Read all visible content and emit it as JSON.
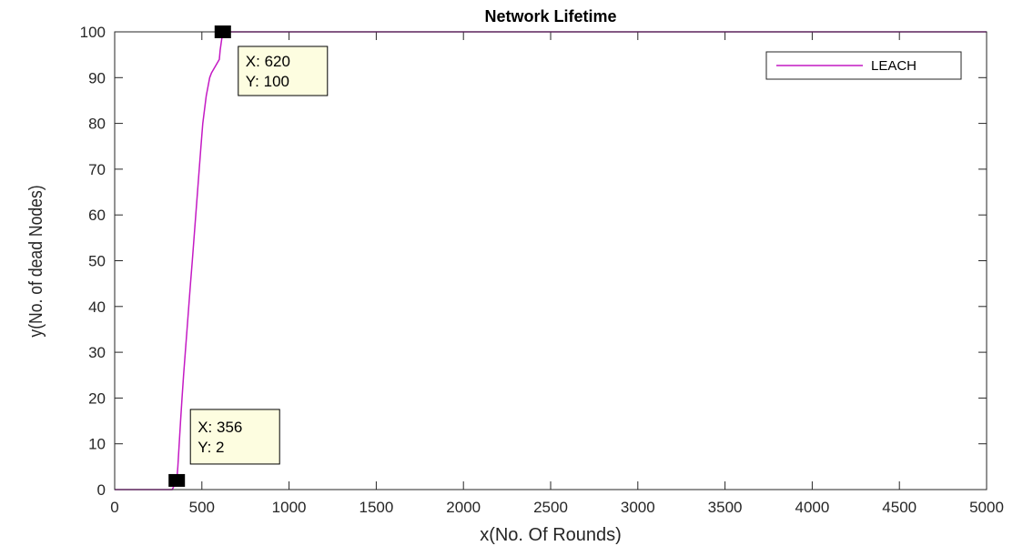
{
  "chart_data": {
    "type": "line",
    "title": "Network Lifetime",
    "xlabel": "x(No. Of Rounds)",
    "ylabel": "y(No. of dead Nodes)",
    "xlim": [
      0,
      5000
    ],
    "ylim": [
      0,
      100
    ],
    "xticks": [
      0,
      500,
      1000,
      1500,
      2000,
      2500,
      3000,
      3500,
      4000,
      4500,
      5000
    ],
    "yticks": [
      0,
      10,
      20,
      30,
      40,
      50,
      60,
      70,
      80,
      90,
      100
    ],
    "grid": false,
    "legend_position": "top-right",
    "colors": {
      "line": "#c41ac4",
      "axes": "#262626",
      "background": "#ffffff",
      "datatip_bg": "#fdfde0"
    },
    "series": [
      {
        "name": "LEACH",
        "x": [
          0,
          330,
          356,
          362,
          370,
          378,
          386,
          395,
          405,
          415,
          425,
          435,
          445,
          455,
          465,
          475,
          485,
          495,
          505,
          515,
          525,
          535,
          545,
          555,
          570,
          585,
          600,
          605,
          612,
          620,
          5000
        ],
        "y": [
          0,
          0,
          2,
          5,
          10,
          15,
          20,
          25,
          30,
          35,
          40,
          45,
          50,
          55,
          60,
          65,
          70,
          75,
          80,
          83,
          86,
          88,
          90,
          91,
          92,
          93,
          94,
          96,
          98,
          100,
          100
        ]
      }
    ],
    "datatips": [
      {
        "x": 620,
        "y": 100,
        "x_text": "X: 620",
        "y_text": "Y: 100"
      },
      {
        "x": 356,
        "y": 2,
        "x_text": "X: 356",
        "y_text": "Y: 2"
      }
    ]
  }
}
